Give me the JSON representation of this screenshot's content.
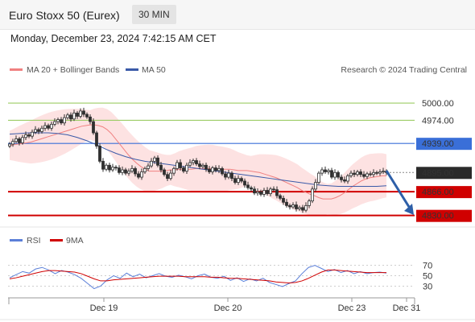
{
  "header": {
    "title": "Euro Stoxx 50 (Eurex)",
    "interval": "30 MIN",
    "timestamp": "Monday, December 23, 2024 7:42:15 AM CET"
  },
  "legend": {
    "ma20_label": "MA 20 + Bollinger Bands",
    "ma50_label": "MA 50",
    "credit": "Research © 2024 Trading Central",
    "rsi_label": "RSI",
    "rsi_ma_label": "9MA"
  },
  "colors": {
    "candle": "#2f2f2f",
    "ma20": "#f08080",
    "bollinger_fill": "#fde2e2",
    "ma50": "#3a5aa8",
    "support_line": "#d00000",
    "resistance_green": "#9ccc65",
    "pivot_blue": "#3a6fd8",
    "current_price_bg": "#2a2a2a",
    "arrow": "#2e5fa8",
    "rsi": "#5b7fd8",
    "rsi_ma": "#d00000"
  },
  "chart_data": [
    {
      "type": "candlestick",
      "title": "",
      "x_ticks": [
        "Dec 19",
        "Dec 20",
        "Dec 23",
        "Dec 31"
      ],
      "ylim": [
        4815,
        5022
      ],
      "closes": [
        4938,
        4942,
        4946,
        4940,
        4948,
        4952,
        4950,
        4956,
        4960,
        4957,
        4962,
        4966,
        4962,
        4968,
        4972,
        4975,
        4970,
        4978,
        4982,
        4976,
        4985,
        4980,
        4988,
        4983,
        4979,
        4972,
        4955,
        4935,
        4912,
        4900,
        4906,
        4899,
        4903,
        4902,
        4895,
        4899,
        4894,
        4897,
        4901,
        4893,
        4888,
        4896,
        4901,
        4905,
        4912,
        4917,
        4906,
        4899,
        4892,
        4886,
        4894,
        4901,
        4910,
        4902,
        4897,
        4906,
        4910,
        4913,
        4908,
        4904,
        4906,
        4900,
        4896,
        4902,
        4898,
        4901,
        4893,
        4888,
        4894,
        4886,
        4880,
        4886,
        4882,
        4876,
        4872,
        4870,
        4864,
        4866,
        4862,
        4868,
        4863,
        4870,
        4869,
        4860,
        4856,
        4850,
        4845,
        4843,
        4846,
        4840,
        4842,
        4838,
        4845,
        4852,
        4870,
        4880,
        4894,
        4899,
        4896,
        4898,
        4888,
        4895,
        4888,
        4884,
        4882,
        4890,
        4894,
        4892,
        4896,
        4892,
        4889,
        4893,
        4892,
        4895,
        4894,
        4896,
        4897,
        4895
      ],
      "series": [
        {
          "name": "MA 20 + Bollinger Bands",
          "values": [
            4936,
            4937,
            4938,
            4939,
            4940,
            4941,
            4943,
            4945,
            4947,
            4949,
            4951,
            4953,
            4955,
            4957,
            4959,
            4961,
            4963,
            4965,
            4966,
            4967,
            4967,
            4966,
            4964,
            4960,
            4954,
            4946,
            4938,
            4930,
            4922,
            4915,
            4909,
            4904,
            4900,
            4897,
            4897,
            4897,
            4897,
            4898,
            4899,
            4899,
            4900,
            4900,
            4900,
            4900,
            4901,
            4901,
            4901,
            4901,
            4901,
            4900,
            4900,
            4900,
            4900,
            4899,
            4898,
            4898,
            4898,
            4897,
            4896,
            4895,
            4893,
            4891,
            4889,
            4887,
            4884,
            4881,
            4878,
            4875,
            4872,
            4868,
            4865,
            4862,
            4860,
            4857,
            4855,
            4855,
            4855,
            4857,
            4860,
            4864,
            4869,
            4874,
            4878,
            4882,
            4885,
            4887,
            4888,
            4889,
            4890,
            4890
          ]
        },
        {
          "name": "MA 50",
          "values": [
            4953,
            4954,
            4955,
            4955,
            4955,
            4954,
            4952,
            4948,
            4943,
            4937,
            4930,
            4924,
            4919,
            4915,
            4912,
            4910,
            4908,
            4906,
            4904,
            4902,
            4900,
            4898,
            4896,
            4894,
            4892,
            4890,
            4888,
            4886,
            4884,
            4882,
            4880,
            4878,
            4876,
            4875,
            4874,
            4874,
            4874,
            4874,
            4874,
            4875
          ]
        }
      ],
      "horizontal_levels": [
        {
          "label": "5000.00",
          "value": 5000,
          "kind": "resistance"
        },
        {
          "label": "4974.00",
          "value": 4974,
          "kind": "resistance"
        },
        {
          "label": "4939.00",
          "value": 4939,
          "kind": "pivot"
        },
        {
          "label": "4895.00",
          "value": 4895,
          "kind": "current"
        },
        {
          "label": "4866.00",
          "value": 4866,
          "kind": "support"
        },
        {
          "label": "4830.00",
          "value": 4830,
          "kind": "support"
        }
      ]
    },
    {
      "type": "line",
      "title": "",
      "ylim": [
        15,
        85
      ],
      "y_ticks": [
        "70",
        "50",
        "30"
      ],
      "series": [
        {
          "name": "RSI",
          "values": [
            46,
            52,
            58,
            55,
            63,
            66,
            61,
            54,
            60,
            57,
            52,
            45,
            35,
            25,
            30,
            42,
            50,
            45,
            55,
            48,
            53,
            46,
            50,
            54,
            49,
            47,
            51,
            48,
            44,
            50,
            53,
            47,
            45,
            49,
            41,
            46,
            39,
            44,
            40,
            45,
            37,
            33,
            29,
            35,
            40,
            54,
            66,
            70,
            64,
            58,
            62,
            56,
            60,
            54,
            58,
            54,
            56,
            57,
            55
          ]
        },
        {
          "name": "9MA",
          "values": [
            44,
            46,
            49,
            52,
            55,
            58,
            60,
            60,
            59,
            58,
            57,
            54,
            49,
            44,
            40,
            40,
            42,
            43,
            44,
            45,
            46,
            47,
            48,
            49,
            49,
            49,
            49,
            48,
            48,
            48,
            48,
            47,
            47,
            46,
            45,
            45,
            44,
            43,
            42,
            41,
            40,
            38,
            37,
            36,
            37,
            40,
            45,
            51,
            57,
            61,
            61,
            60,
            59,
            58,
            57,
            56,
            56,
            56,
            56
          ]
        }
      ]
    }
  ]
}
